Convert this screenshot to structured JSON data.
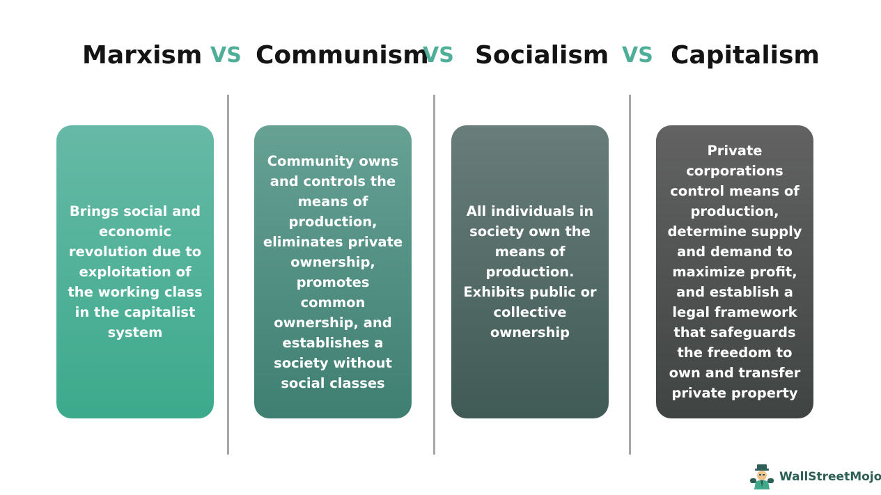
{
  "headings": [
    "Marxism",
    "Communism",
    "Socialism",
    "Capitalism"
  ],
  "vs_label": "VS",
  "cards": [
    {
      "text": "Brings social and economic revolution due to exploitation of the working class in the capitalist system"
    },
    {
      "text": "Community owns and controls the means of production, eliminates private ownership, promotes common ownership, and establishes a society without social classes"
    },
    {
      "text": "All individuals in society own the means of production. Exhibits public or collective ownership"
    },
    {
      "text": "Private corporations control means of production, determine supply and demand to maximize profit, and establish a legal framework that safeguards the freedom to own and transfer private property"
    }
  ],
  "brand": {
    "name": "WallStreetMojo",
    "logo_icon": "mascot-logo-icon"
  },
  "colors": {
    "vs": "#4fae98",
    "card1": "#3daa8c",
    "card2": "#4a8a7d",
    "card3": "#4c6662",
    "card4": "#4a4d4b"
  }
}
